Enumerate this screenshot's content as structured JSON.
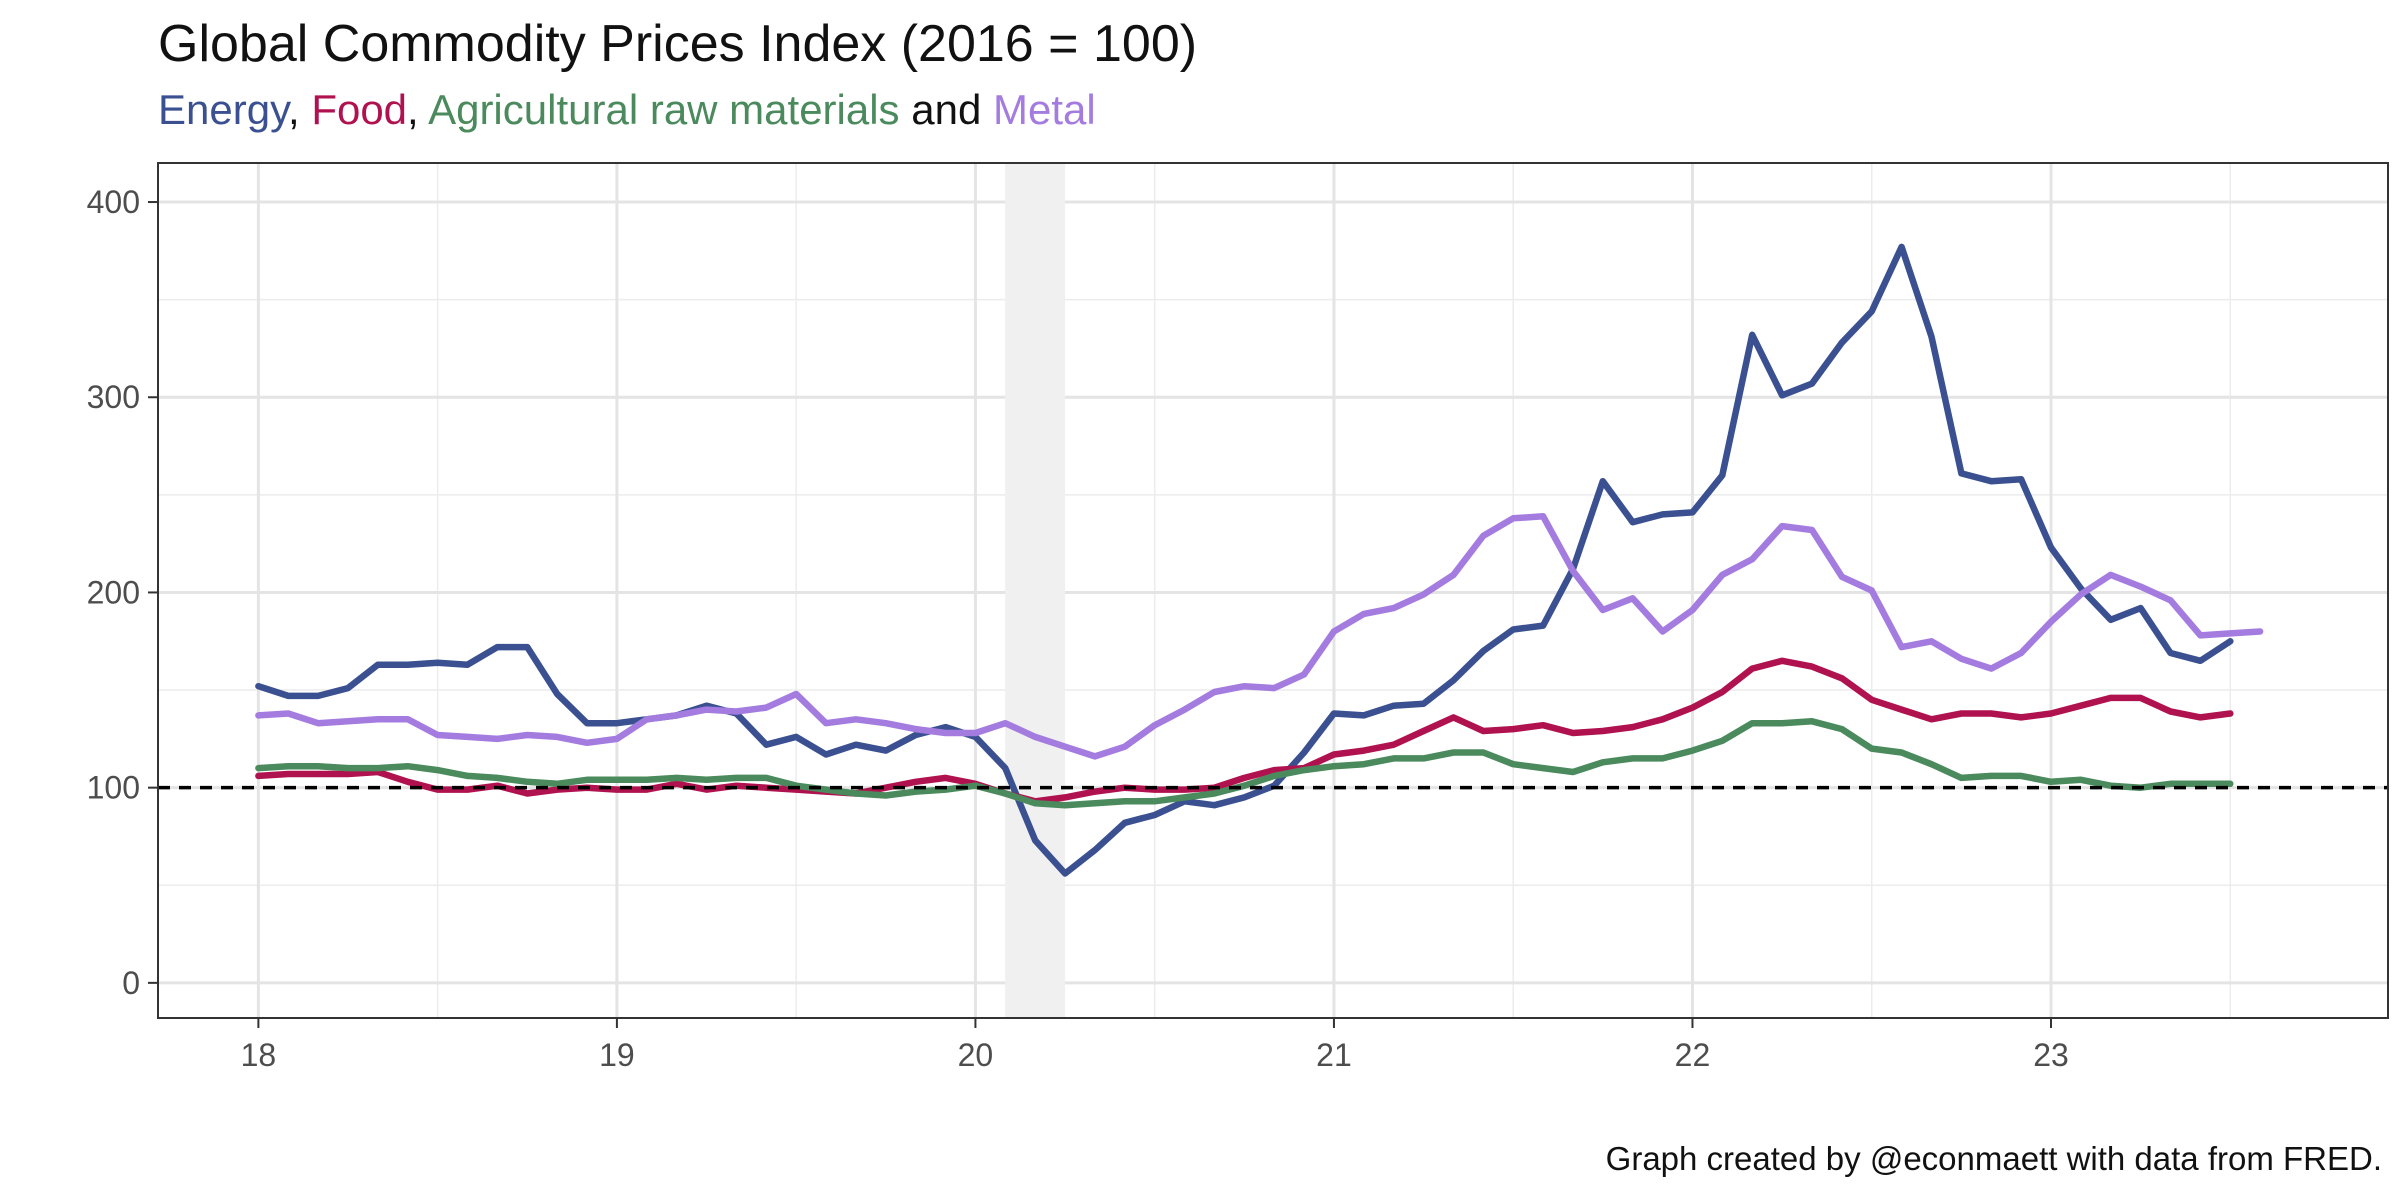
{
  "chart_data": {
    "type": "line",
    "title": "Global Commodity Prices Index (2016 = 100)",
    "subtitle_parts": [
      {
        "text": "Energy",
        "color": "#3a5090"
      },
      {
        "text": ", ",
        "color": "#111111"
      },
      {
        "text": "Food",
        "color": "#b0124f"
      },
      {
        "text": ", ",
        "color": "#111111"
      },
      {
        "text": "Agricultural raw materials",
        "color": "#4a8a5c"
      },
      {
        "text": " and ",
        "color": "#111111"
      },
      {
        "text": "Metal",
        "color": "#a47ce0"
      }
    ],
    "caption": "Graph created by @econmaett with data from FRED.",
    "xlim": [
      17.72,
      23.94
    ],
    "ylim": [
      -18,
      420
    ],
    "x_ticks": [
      18,
      19,
      20,
      21,
      22,
      23
    ],
    "x_tick_labels": [
      "18",
      "19",
      "20",
      "21",
      "22",
      "23"
    ],
    "y_ticks": [
      0,
      100,
      200,
      300,
      400
    ],
    "y_tick_labels": [
      "0",
      "100",
      "200",
      "300",
      "400"
    ],
    "grid": true,
    "reference_line": {
      "y": 100,
      "style": "dashed",
      "color": "#000000"
    },
    "shaded_region": {
      "x_start": 20.083,
      "x_end": 20.25,
      "color": "#f0f0f0"
    },
    "start_year": 18,
    "series": [
      {
        "color": "#3a5090",
        "values": [
          152,
          147,
          147,
          151,
          163,
          163,
          164,
          163,
          172,
          172,
          148,
          133,
          133,
          135,
          137,
          142,
          138,
          122,
          126,
          117,
          122,
          119,
          127,
          131,
          126,
          110,
          73,
          56,
          68,
          82,
          86,
          93,
          91,
          95,
          101,
          118,
          138,
          137,
          142,
          143,
          155,
          170,
          181,
          183,
          212,
          257,
          236,
          240,
          241,
          260,
          332,
          301,
          307,
          328,
          344,
          377,
          331,
          261,
          257,
          258,
          223,
          202,
          186,
          192,
          169,
          165,
          175
        ]
      },
      {
        "color": "#b0124f",
        "values": [
          106,
          107,
          107,
          107,
          108,
          103,
          99,
          99,
          101,
          97,
          99,
          100,
          99,
          99,
          102,
          99,
          101,
          100,
          99,
          98,
          97,
          100,
          103,
          105,
          102,
          97,
          93,
          95,
          98,
          100,
          99,
          99,
          100,
          105,
          109,
          110,
          117,
          119,
          122,
          129,
          136,
          129,
          130,
          132,
          128,
          129,
          131,
          135,
          141,
          149,
          161,
          165,
          162,
          156,
          145,
          140,
          135,
          138,
          138,
          136,
          138,
          142,
          146,
          146,
          139,
          136,
          138
        ]
      },
      {
        "color": "#4a8a5c",
        "values": [
          110,
          111,
          111,
          110,
          110,
          111,
          109,
          106,
          105,
          103,
          102,
          104,
          104,
          104,
          105,
          104,
          105,
          105,
          101,
          99,
          97,
          96,
          98,
          99,
          101,
          97,
          92,
          91,
          92,
          93,
          93,
          95,
          97,
          101,
          106,
          109,
          111,
          112,
          115,
          115,
          118,
          118,
          112,
          110,
          108,
          113,
          115,
          115,
          119,
          124,
          133,
          133,
          134,
          130,
          120,
          118,
          112,
          105,
          106,
          106,
          103,
          104,
          101,
          100,
          102,
          102,
          102
        ]
      },
      {
        "color": "#a47ce0",
        "values": [
          137,
          138,
          133,
          134,
          135,
          135,
          127,
          126,
          125,
          127,
          126,
          123,
          125,
          135,
          137,
          140,
          139,
          141,
          148,
          133,
          135,
          133,
          130,
          128,
          128,
          133,
          126,
          121,
          116,
          121,
          132,
          140,
          149,
          152,
          151,
          158,
          180,
          189,
          192,
          199,
          209,
          229,
          238,
          239,
          211,
          191,
          197,
          180,
          191,
          209,
          217,
          234,
          232,
          208,
          201,
          172,
          175,
          166,
          161,
          169,
          185,
          199,
          209,
          203,
          196,
          178,
          179,
          180
        ]
      }
    ]
  }
}
